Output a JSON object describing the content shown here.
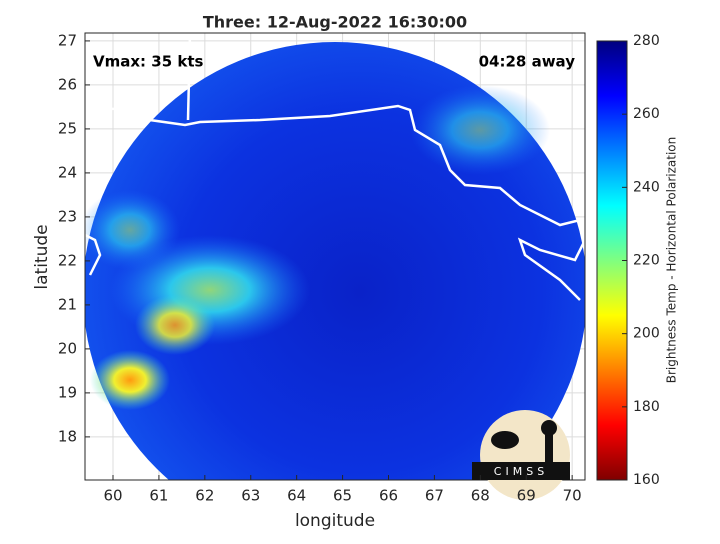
{
  "map": {
    "title": "Three: 12-Aug-2022 16:30:00",
    "xlabel": "longitude",
    "ylabel": "latitude",
    "xlim": [
      59.39,
      70.28
    ],
    "ylim": [
      17.02,
      27.18
    ],
    "xticks": [
      60,
      61,
      62,
      63,
      64,
      65,
      66,
      67,
      68,
      69,
      70
    ],
    "yticks": [
      18,
      19,
      20,
      21,
      22,
      23,
      24,
      25,
      26,
      27
    ],
    "grid": true,
    "annotations": {
      "left": "Vmax: 35 kts",
      "right": "04:28 away"
    },
    "colorbar": {
      "label": "Brightness Temp - Horizontal Polarization",
      "lim": [
        160,
        280
      ],
      "ticks": [
        160,
        180,
        200,
        220,
        240,
        260,
        280
      ],
      "colormap": "jet"
    },
    "logo": "CIMSS"
  }
}
